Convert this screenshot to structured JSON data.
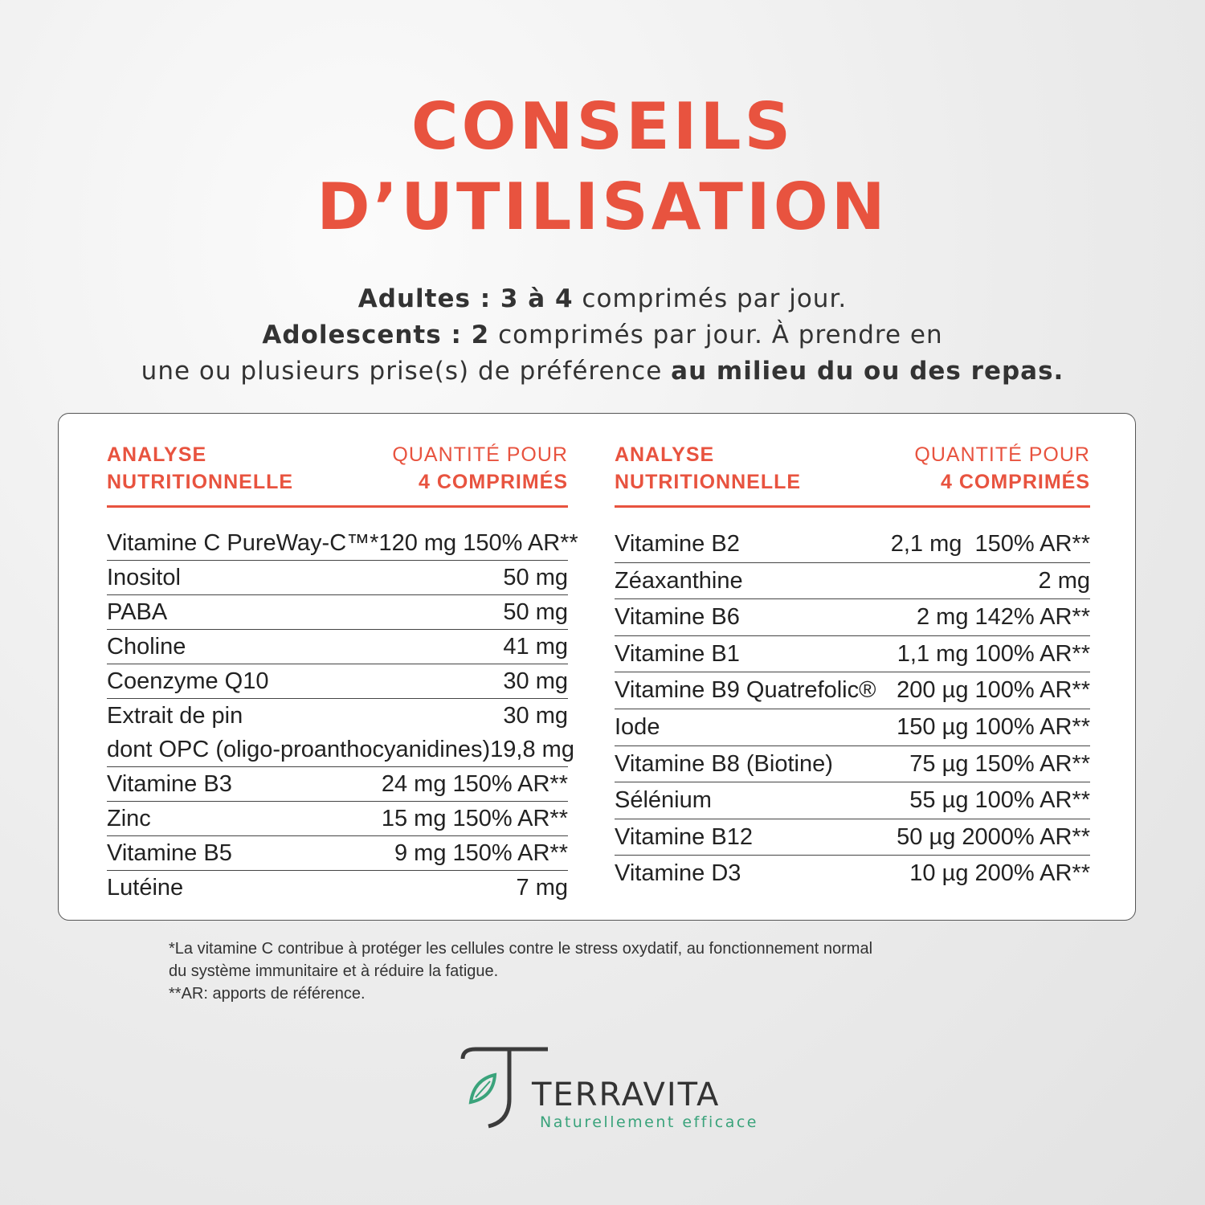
{
  "header": {
    "title": [
      "CONSEILS",
      "D’UTILISATION"
    ]
  },
  "instructions": [
    [
      {
        "text": "Adultes : 3 à 4",
        "bold": true
      },
      {
        "text": " comprimés par jour.",
        "bold": false
      }
    ],
    [
      {
        "text": "Adolescents : 2",
        "bold": true
      },
      {
        "text": " comprimés par jour. À prendre en",
        "bold": false
      }
    ],
    [
      {
        "text": "une ou plusieurs prise(s) de préférence ",
        "bold": false
      },
      {
        "text": "au milieu du ou des repas.",
        "bold": true
      }
    ]
  ],
  "table": {
    "columns": [
      {
        "heading": {
          "label": [
            "ANALYSE",
            "NUTRITIONNELLE"
          ],
          "quantity": [
            "QUANTITÉ POUR",
            "4 COMPRIMÉS"
          ]
        },
        "rows": [
          {
            "name": "Vitamine C PureWay-C™*",
            "quantity": "120 mg 150% AR**"
          },
          {
            "name": "Inositol",
            "quantity": "50 mg"
          },
          {
            "name": "PABA",
            "quantity": "50 mg"
          },
          {
            "name": "Choline",
            "quantity": "41 mg"
          },
          {
            "name": "Coenzyme Q10",
            "quantity": "30 mg"
          },
          {
            "name": "Extrait de pin",
            "quantity": "30 mg",
            "detail": {
              "name": "dont OPC (oligo-proanthocyanidines)",
              "quantity": "19,8 mg"
            }
          },
          {
            "name": "Vitamine B3",
            "quantity": "24 mg 150% AR**"
          },
          {
            "name": "Zinc",
            "quantity": "15 mg 150% AR**"
          },
          {
            "name": "Vitamine B5",
            "quantity": "9 mg 150% AR**"
          },
          {
            "name": "Lutéine",
            "quantity": "7 mg"
          }
        ]
      },
      {
        "heading": {
          "label": [
            "ANALYSE",
            "NUTRITIONNELLE"
          ],
          "quantity": [
            "QUANTITÉ POUR",
            "4 COMPRIMÉS"
          ]
        },
        "rows": [
          {
            "name": "Vitamine B2",
            "quantity": "2,1 mg  150% AR**"
          },
          {
            "name": "Zéaxanthine",
            "quantity": "2 mg"
          },
          {
            "name": "Vitamine B6",
            "quantity": "2 mg 142% AR**"
          },
          {
            "name": "Vitamine B1",
            "quantity": "1,1 mg 100% AR**"
          },
          {
            "name": "Vitamine B9 Quatrefolic®",
            "quantity": "200 µg 100% AR**"
          },
          {
            "name": "Iode",
            "quantity": "150 µg 100% AR**"
          },
          {
            "name": "Vitamine B8 (Biotine)",
            "quantity": "75 µg 150% AR**"
          },
          {
            "name": "Sélénium",
            "quantity": "55 µg 100% AR**"
          },
          {
            "name": "Vitamine B12",
            "quantity": "50 µg 2000% AR**"
          },
          {
            "name": "Vitamine D3",
            "quantity": "10 µg 200% AR**"
          }
        ]
      }
    ]
  },
  "footnotes": [
    "*La vitamine C contribue à protéger les cellules contre le stress oxydatif, au fonctionnement normal",
    "du système immunitaire et à réduire la fatigue.",
    "**AR: apports de référence."
  ],
  "logo": {
    "brand": "TERRAVITA",
    "tagline": "Naturellement efficace"
  }
}
